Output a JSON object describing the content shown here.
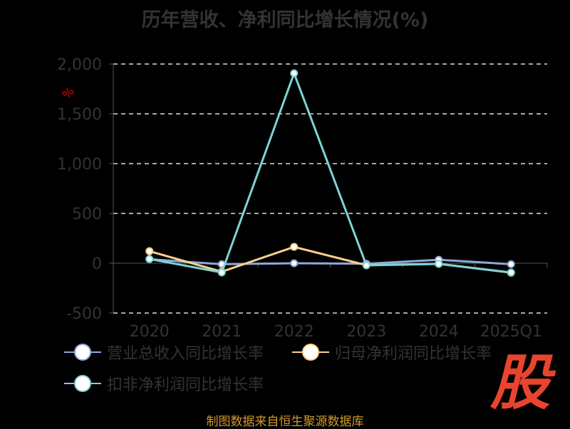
{
  "chart_data": {
    "type": "line",
    "title": "历年营收、净利同比增长情况(%)",
    "ylabel": "%",
    "categories": [
      "2020",
      "2021",
      "2022",
      "2023",
      "2024",
      "2025Q1"
    ],
    "ylim": [
      -500,
      2000
    ],
    "yticks": [
      -500,
      0,
      500,
      1000,
      1500,
      2000
    ],
    "ytick_labels": [
      "-500",
      "0",
      "500",
      "1,000",
      "1,500",
      "2,000"
    ],
    "grid": true,
    "legend_position": "bottom",
    "series": [
      {
        "name": "营业总收入同比增长率",
        "color": "#8fa8dc",
        "values": [
          40,
          -10,
          0,
          -5,
          35,
          -10
        ]
      },
      {
        "name": "归母净利润同比增长率",
        "color": "#fdd18d",
        "values": [
          121,
          -85,
          164,
          -20,
          -5,
          -95
        ]
      },
      {
        "name": "扣非净利润同比增长率",
        "color": "#7dd3d6",
        "values": [
          43,
          -93,
          1907,
          -21,
          -7,
          -93
        ]
      }
    ]
  },
  "source": "制图数据来自恒生聚源数据库",
  "logo_text": "股"
}
